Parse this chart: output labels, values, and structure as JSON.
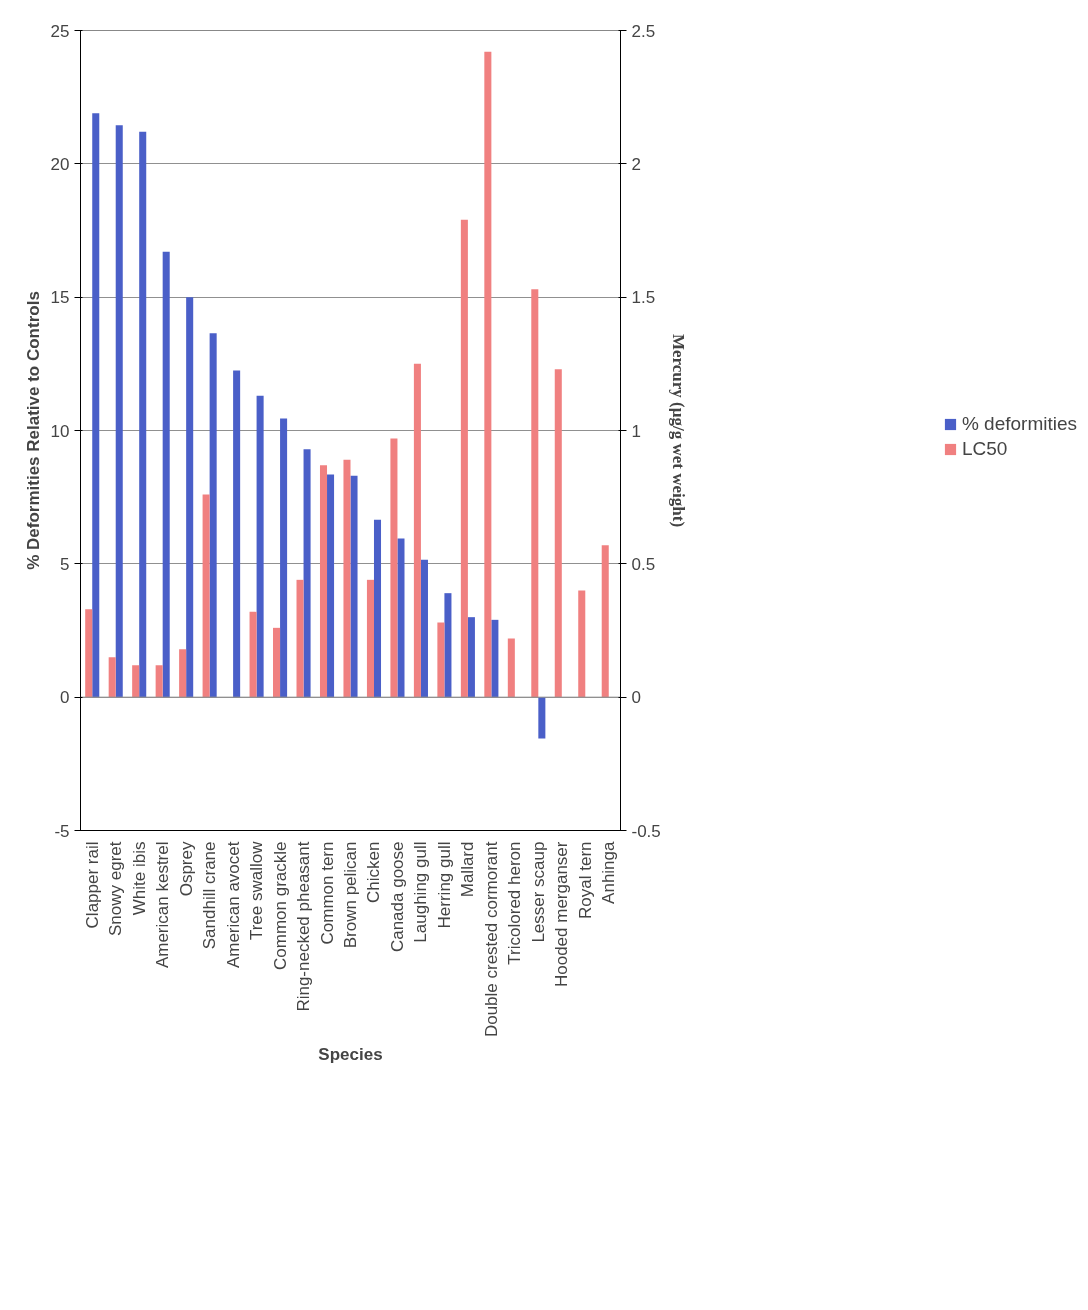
{
  "chart_data": {
    "type": "bar",
    "xlabel": "Species",
    "ylabel": "% Deformities Relative to Controls",
    "y2label": "Mercury (µg/g wet weight)",
    "categories": [
      "Clapper rail",
      "Snowy egret",
      "White ibis",
      "American kestrel",
      "Osprey",
      "Sandhill crane",
      "American avocet",
      "Tree swallow",
      "Common grackle",
      "Ring-necked pheasant",
      "Common tern",
      "Brown pelican",
      "Chicken",
      "Canada goose",
      "Laughing gull",
      "Herring gull",
      "Mallard",
      "Double crested cormorant",
      "Tricolored heron",
      "Lesser scaup",
      "Hooded merganser",
      "Royal tern",
      "Anhinga"
    ],
    "series": [
      {
        "name": "% deformities",
        "color": "#4a5fc8",
        "values": [
          21.9,
          21.45,
          21.2,
          16.7,
          15.0,
          13.65,
          12.25,
          11.3,
          10.45,
          9.3,
          8.35,
          8.3,
          6.65,
          5.95,
          5.15,
          3.9,
          3.0,
          2.9,
          null,
          -1.55,
          null,
          null,
          null
        ]
      },
      {
        "name": "LC50",
        "color": "#f08080",
        "axis": "y2",
        "values": [
          0.33,
          0.15,
          0.12,
          0.12,
          0.18,
          0.76,
          null,
          0.32,
          0.26,
          0.44,
          0.87,
          0.89,
          0.44,
          0.97,
          1.25,
          0.28,
          1.79,
          2.42,
          0.22,
          1.53,
          1.23,
          0.4,
          0.57
        ]
      }
    ],
    "ylim": [
      -5,
      25
    ],
    "yticks": [
      -5,
      0,
      5,
      10,
      15,
      20,
      25
    ],
    "y2lim": [
      -0.5,
      2.5
    ],
    "y2ticks": [
      -0.5,
      0,
      0.5,
      1,
      1.5,
      2,
      2.5
    ],
    "grid": "y",
    "legend": "right"
  }
}
